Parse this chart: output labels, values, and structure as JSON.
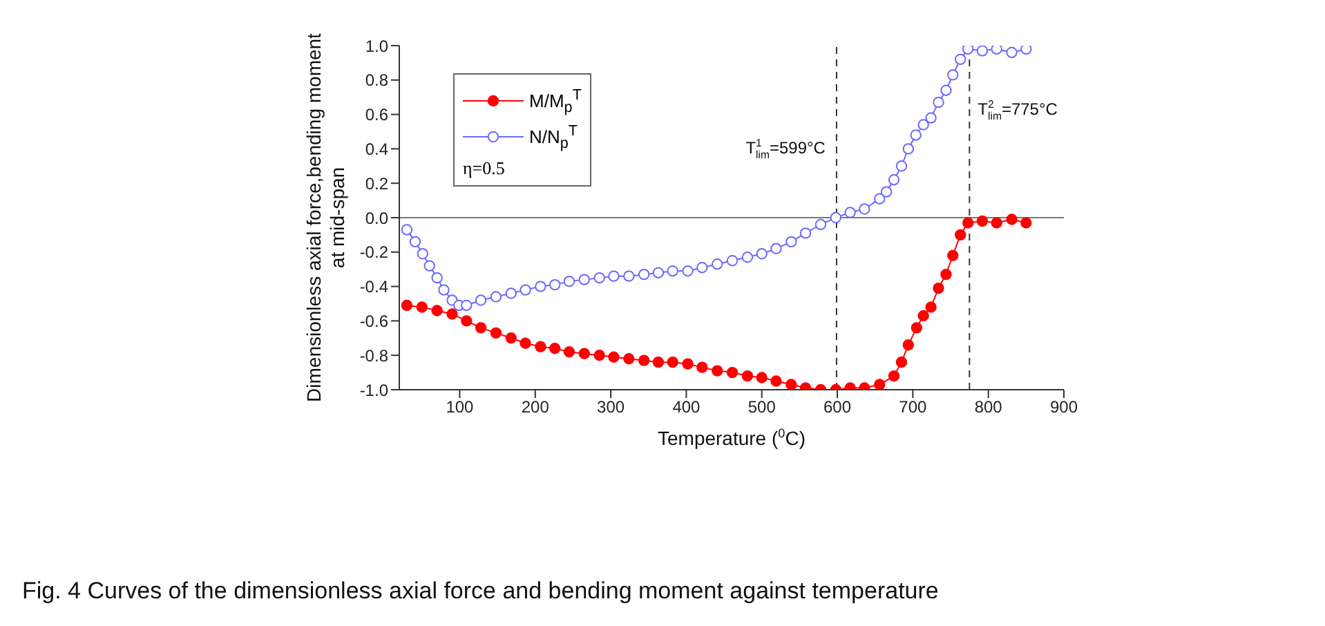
{
  "chart_data": {
    "type": "line",
    "xlabel": "Temperature ($^{0}$C)",
    "ylabel": "Dimensionless axial force,bending moment at mid-span",
    "x": [
      30,
      50,
      70,
      90,
      109,
      128,
      148,
      168,
      187,
      207,
      226,
      245,
      265,
      285,
      304,
      324,
      344,
      363,
      382,
      402,
      421,
      441,
      461,
      481,
      500,
      519,
      539,
      558,
      578,
      598,
      617,
      636,
      656,
      675,
      685,
      694,
      705,
      714,
      724,
      734,
      744,
      753,
      763,
      773,
      792,
      811,
      831,
      850
    ],
    "series": [
      {
        "name": "M/M$_{p}$$^{T}$",
        "color": "#ff0000",
        "values": [
          -0.51,
          -0.52,
          -0.54,
          -0.56,
          -0.6,
          -0.64,
          -0.67,
          -0.7,
          -0.73,
          -0.75,
          -0.76,
          -0.78,
          -0.79,
          -0.8,
          -0.81,
          -0.82,
          -0.83,
          -0.84,
          -0.84,
          -0.85,
          -0.87,
          -0.89,
          -0.9,
          -0.92,
          -0.93,
          -0.95,
          -0.97,
          -0.99,
          -1.0,
          -1.0,
          -0.99,
          -0.99,
          -0.97,
          -0.92,
          -0.84,
          -0.74,
          -0.64,
          -0.57,
          -0.52,
          -0.41,
          -0.33,
          -0.22,
          -0.1,
          -0.03,
          -0.02,
          -0.03,
          -0.01,
          -0.03
        ]
      },
      {
        "name": "N/N$_{p}$$^{T}$",
        "color": "#6a6aff",
        "x": [
          30,
          41,
          51,
          60,
          70,
          79,
          90,
          99,
          109,
          128,
          148,
          168,
          187,
          207,
          226,
          245,
          265,
          285,
          304,
          324,
          344,
          363,
          382,
          402,
          421,
          441,
          461,
          481,
          500,
          519,
          539,
          558,
          578,
          598,
          617,
          636,
          656,
          665,
          675,
          685,
          694,
          704,
          714,
          724,
          734,
          744,
          753,
          763,
          773,
          792,
          811,
          831,
          850
        ],
        "values": [
          -0.07,
          -0.14,
          -0.21,
          -0.28,
          -0.35,
          -0.42,
          -0.48,
          -0.51,
          -0.51,
          -0.48,
          -0.46,
          -0.44,
          -0.42,
          -0.4,
          -0.39,
          -0.37,
          -0.36,
          -0.35,
          -0.34,
          -0.34,
          -0.33,
          -0.32,
          -0.31,
          -0.31,
          -0.29,
          -0.27,
          -0.25,
          -0.23,
          -0.21,
          -0.18,
          -0.14,
          -0.09,
          -0.04,
          0.0,
          0.03,
          0.05,
          0.11,
          0.15,
          0.22,
          0.3,
          0.4,
          0.48,
          0.54,
          0.58,
          0.67,
          0.74,
          0.83,
          0.92,
          0.98,
          0.97,
          0.98,
          0.96,
          0.98
        ]
      }
    ],
    "xlim": [
      20,
      900
    ],
    "xticks": [
      100,
      200,
      300,
      400,
      500,
      600,
      700,
      800,
      900
    ],
    "ylim": [
      -1.0,
      1.0
    ],
    "yticks": [
      {
        "value": -1.0,
        "label": "-1.0"
      },
      {
        "value": -0.8,
        "label": "-0.8"
      },
      {
        "value": -0.6,
        "label": "-0.6"
      },
      {
        "value": -0.4,
        "label": "-0.4"
      },
      {
        "value": -0.2,
        "label": "-0.2"
      },
      {
        "value": 0,
        "label": "0.0"
      },
      {
        "value": 0.2,
        "label": "0.2"
      },
      {
        "value": 0.4,
        "label": "0.4"
      },
      {
        "value": 0.6,
        "label": "0.6"
      },
      {
        "value": 0.8,
        "label": "0.8"
      },
      {
        "value": 1.0,
        "label": "1.0"
      }
    ],
    "ref_lines": [
      {
        "axis": "x",
        "value": 599,
        "label": "T$^{1}$$_{lim}$=599°C",
        "line_style": "dashed",
        "color": "#333333"
      },
      {
        "axis": "x",
        "value": 775,
        "label": "T$^{2}$$_{lim}$=775°C",
        "line_style": "dashed",
        "color": "#333333"
      },
      {
        "axis": "y",
        "value": 0,
        "color": "#777777",
        "line_style": "solid"
      }
    ],
    "annotations": [
      "η=0.5",
      "Fig. 4  Curves of the dimensionless axial force and bending moment against temperature"
    ],
    "legend": "top left",
    "marker": "circle",
    "line_style": "solid"
  }
}
